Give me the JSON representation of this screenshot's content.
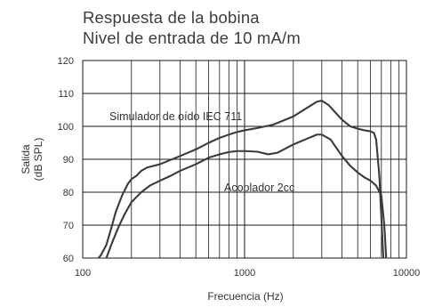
{
  "chart_data": {
    "type": "line",
    "title": "Respuesta de la bobina",
    "subtitle": "Nivel de entrada de 10 mA/m",
    "xlabel": "Frecuencia (Hz)",
    "ylabel_lines": [
      "Salida",
      "(dB SPL)"
    ],
    "xscale": "log",
    "xlim": [
      100,
      10000
    ],
    "ylim": [
      60,
      120
    ],
    "grid": true,
    "x_tick_labels": [
      "100",
      "1000",
      "10000"
    ],
    "y_tick_labels": [
      "60",
      "70",
      "80",
      "90",
      "100",
      "110",
      "120"
    ],
    "series": [
      {
        "name": "Simulador de oído IEC 711",
        "points": [
          [
            125,
            60
          ],
          [
            130,
            61
          ],
          [
            140,
            64
          ],
          [
            150,
            69
          ],
          [
            160,
            74
          ],
          [
            175,
            79
          ],
          [
            190,
            82.5
          ],
          [
            200,
            84
          ],
          [
            215,
            85
          ],
          [
            230,
            86.5
          ],
          [
            250,
            87.5
          ],
          [
            300,
            88.5
          ],
          [
            400,
            91
          ],
          [
            500,
            93
          ],
          [
            600,
            95
          ],
          [
            700,
            96.5
          ],
          [
            800,
            97.5
          ],
          [
            900,
            98.3
          ],
          [
            1000,
            98.8
          ],
          [
            1200,
            99.5
          ],
          [
            1500,
            100.5
          ],
          [
            2000,
            103
          ],
          [
            2500,
            106
          ],
          [
            2800,
            107.5
          ],
          [
            3000,
            107.8
          ],
          [
            3300,
            106.5
          ],
          [
            4000,
            102
          ],
          [
            4500,
            100
          ],
          [
            5000,
            99.3
          ],
          [
            5500,
            98.8
          ],
          [
            6000,
            98.5
          ],
          [
            6300,
            98
          ],
          [
            6500,
            96
          ],
          [
            6800,
            85
          ],
          [
            7200,
            60
          ]
        ]
      },
      {
        "name": "Acoplador 2cc",
        "points": [
          [
            140,
            60
          ],
          [
            150,
            64
          ],
          [
            165,
            69
          ],
          [
            180,
            73
          ],
          [
            200,
            77
          ],
          [
            230,
            80
          ],
          [
            260,
            82
          ],
          [
            300,
            83.5
          ],
          [
            350,
            85
          ],
          [
            400,
            86.5
          ],
          [
            500,
            88.5
          ],
          [
            600,
            90.5
          ],
          [
            700,
            91.5
          ],
          [
            800,
            92.2
          ],
          [
            900,
            92.5
          ],
          [
            1000,
            92.5
          ],
          [
            1200,
            92.3
          ],
          [
            1400,
            91.5
          ],
          [
            1600,
            92
          ],
          [
            2000,
            94.5
          ],
          [
            2500,
            96.5
          ],
          [
            2800,
            97.5
          ],
          [
            3000,
            97.5
          ],
          [
            3400,
            96
          ],
          [
            4000,
            91
          ],
          [
            4500,
            88
          ],
          [
            5000,
            86
          ],
          [
            5500,
            84.5
          ],
          [
            6000,
            83.5
          ],
          [
            6500,
            82
          ],
          [
            7000,
            79
          ],
          [
            7300,
            70
          ],
          [
            7500,
            60
          ]
        ]
      }
    ],
    "annotations": [
      "Simulador de oído IEC 711",
      "Acoplador 2cc"
    ],
    "line_color": "#3a3a3a",
    "grid_color": "#1a1a1a"
  }
}
